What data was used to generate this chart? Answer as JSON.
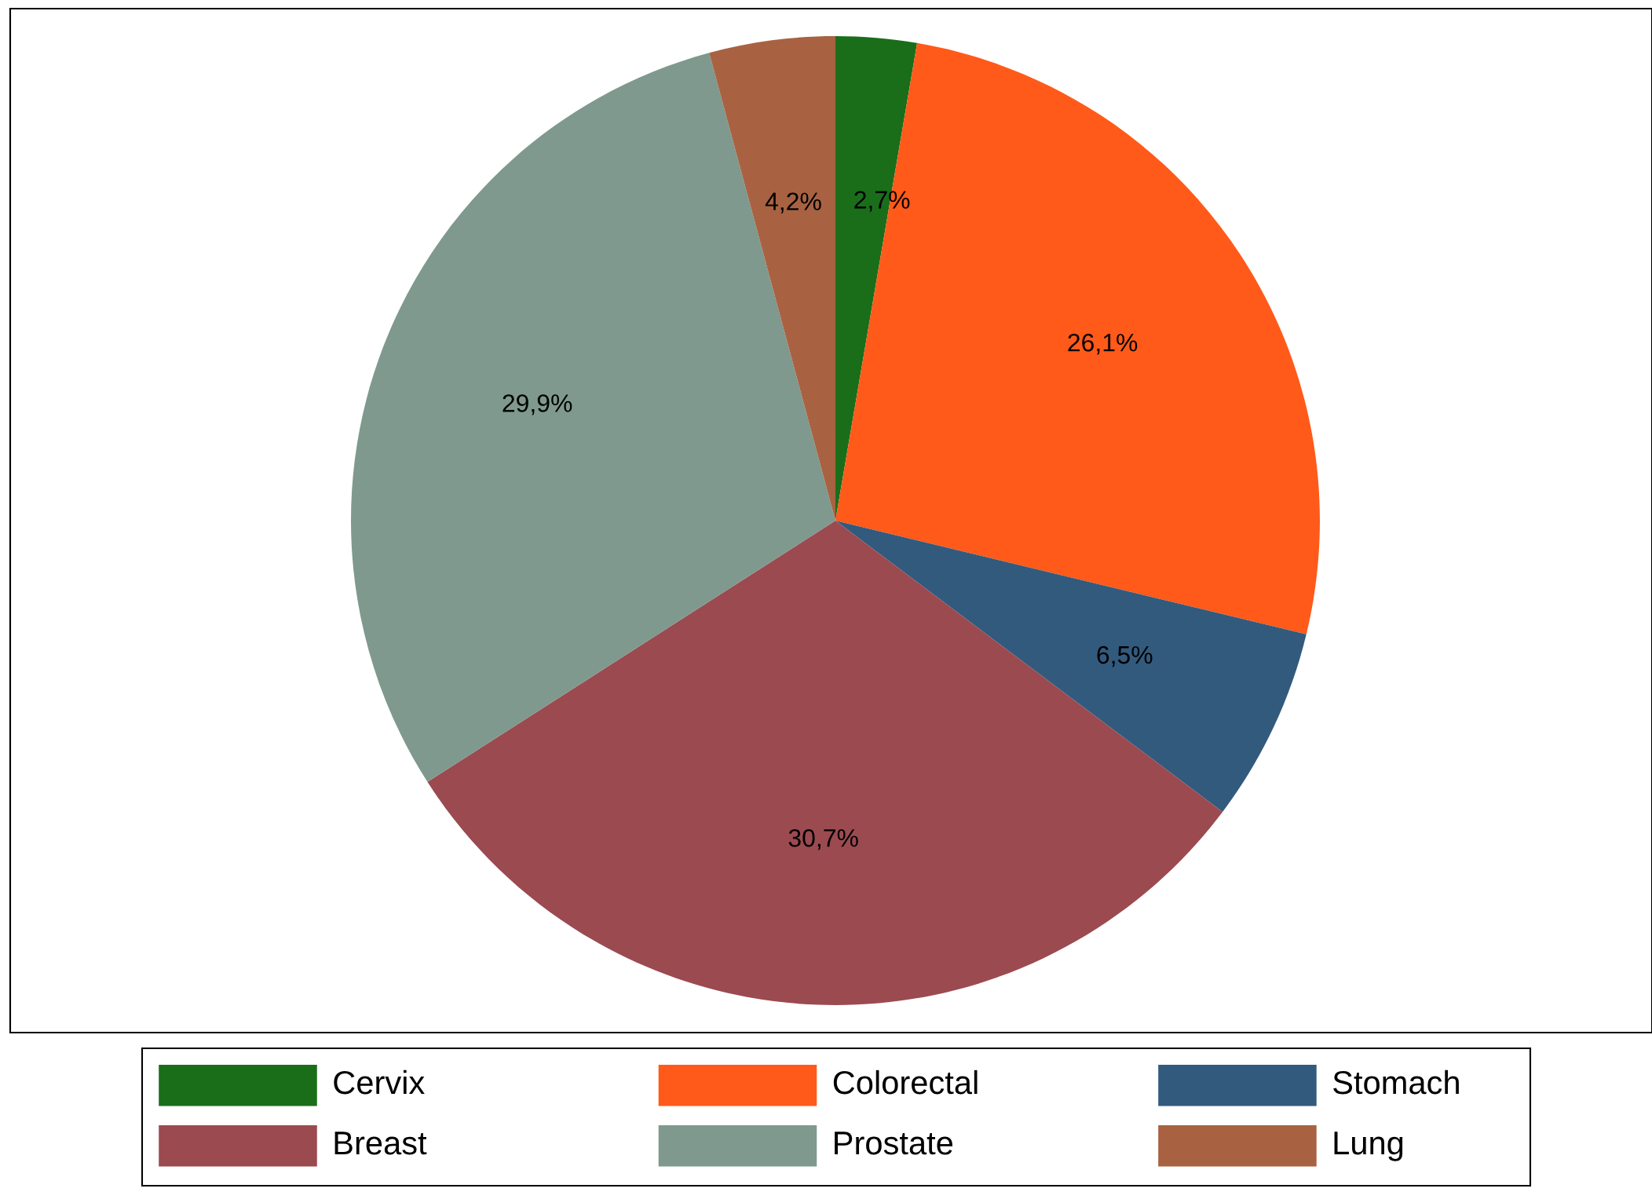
{
  "chart_data": {
    "type": "pie",
    "categories": [
      "Cervix",
      "Colorectal",
      "Stomach",
      "Breast",
      "Prostate",
      "Lung"
    ],
    "values": [
      2.7,
      26.1,
      6.5,
      30.7,
      29.9,
      4.2
    ],
    "value_labels": [
      "2,7%",
      "26,1%",
      "6,5%",
      "30,7%",
      "29,9%",
      "4,2%"
    ],
    "colors": [
      "#1a6e1a",
      "#ff5a1a",
      "#325a7d",
      "#9b4a50",
      "#7f998e",
      "#a86242"
    ],
    "legend": "bottom"
  }
}
